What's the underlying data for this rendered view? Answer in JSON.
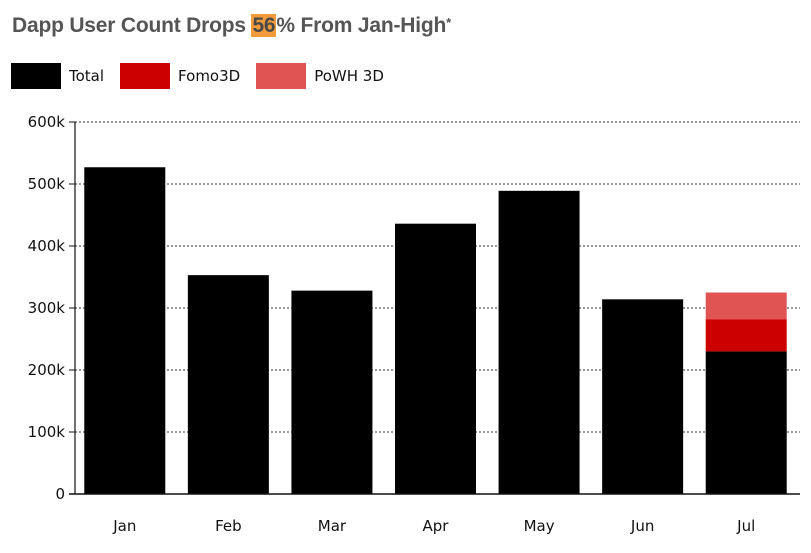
{
  "chart_data": {
    "type": "bar",
    "title_parts": [
      "Dapp User Count Drops ",
      "56",
      "% From Jan-High",
      "*"
    ],
    "categories": [
      "Jan",
      "Feb",
      "Mar",
      "Apr",
      "May",
      "Jun",
      "Jul"
    ],
    "series": [
      {
        "name": "Total",
        "color": "#000000",
        "values": [
          527000,
          353000,
          328000,
          436000,
          489000,
          314000,
          230000
        ]
      },
      {
        "name": "Fomo3D",
        "color": "#cc0000",
        "values": [
          0,
          0,
          0,
          0,
          0,
          0,
          52000
        ]
      },
      {
        "name": "PoWH 3D",
        "color": "#e05454",
        "values": [
          0,
          0,
          0,
          0,
          0,
          0,
          43000
        ]
      }
    ],
    "stacked": true,
    "ylim": [
      0,
      600000
    ],
    "yticks": [
      {
        "value": 0,
        "label": "0"
      },
      {
        "value": 100000,
        "label": "100k"
      },
      {
        "value": 200000,
        "label": "200k"
      },
      {
        "value": 300000,
        "label": "300k"
      },
      {
        "value": 400000,
        "label": "400k"
      },
      {
        "value": 500000,
        "label": "500k"
      },
      {
        "value": 600000,
        "label": "600k"
      }
    ],
    "grid": true,
    "legend_position": "top-left",
    "highlight_color": "#f39a3a"
  }
}
